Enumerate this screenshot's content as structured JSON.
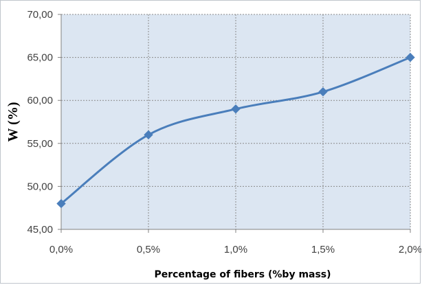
{
  "chart_data": {
    "type": "line",
    "title": "",
    "xlabel": "Percentage of fibers (%by mass)",
    "ylabel": "W (%)",
    "x": [
      0.0,
      0.5,
      1.0,
      1.5,
      2.0
    ],
    "x_tick_labels": [
      "0,0%",
      "0,5%",
      "1,0%",
      "1,5%",
      "2,0%"
    ],
    "ylim": [
      45,
      70
    ],
    "y_ticks": [
      45,
      50,
      55,
      60,
      65,
      70
    ],
    "y_tick_labels": [
      "45,00",
      "50,00",
      "55,00",
      "60,00",
      "65,00",
      "70,00"
    ],
    "grid": true,
    "legend": "none",
    "series": [
      {
        "values": [
          48,
          56,
          59,
          61,
          65
        ],
        "color": "#4a7ebb"
      }
    ],
    "plot_background": "#dce6f2",
    "gridline_color": "#8a8a8a"
  }
}
